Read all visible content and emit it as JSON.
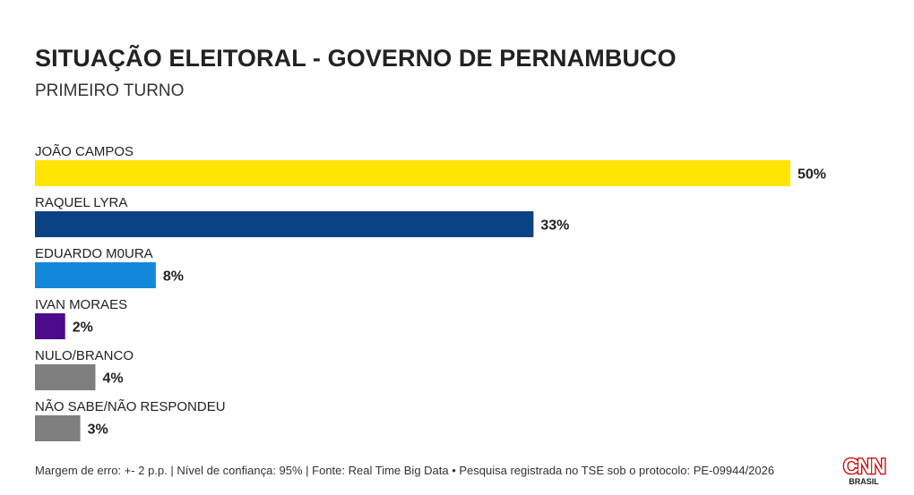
{
  "header": {
    "title": "SITUAÇÃO ELEITORAL - GOVERNO DE PERNAMBUCO",
    "subtitle": "PRIMEIRO TURNO"
  },
  "chart_data": {
    "type": "bar",
    "orientation": "horizontal",
    "title": "SITUAÇÃO ELEITORAL - GOVERNO DE PERNAMBUCO",
    "subtitle": "PRIMEIRO TURNO",
    "categories": [
      "JOÃO CAMPOS",
      "RAQUEL LYRA",
      "EDUARDO M0URA",
      "IVAN MORAES",
      "NULO/BRANCO",
      "NÃO SABE/NÃO RESPONDEU"
    ],
    "values": [
      50,
      33,
      8,
      2,
      4,
      3
    ],
    "value_labels": [
      "50%",
      "33%",
      "8%",
      "2%",
      "4%",
      "3%"
    ],
    "colors": [
      "#FFE500",
      "#0B4283",
      "#1488D8",
      "#4B0B8C",
      "#7F7F7F",
      "#7F7F7F"
    ],
    "unit": "%",
    "xlim": [
      0,
      50
    ],
    "grid": false,
    "legend": "none"
  },
  "footer": {
    "note": "Margem de erro: +- 2 p.p. | Nível de confiança: 95% | Fonte: Real Time Big Data • Pesquisa registrada no TSE sob o protocolo: PE-09944/2026",
    "logo_text": "CNN",
    "logo_subtext": "BRASIL"
  }
}
